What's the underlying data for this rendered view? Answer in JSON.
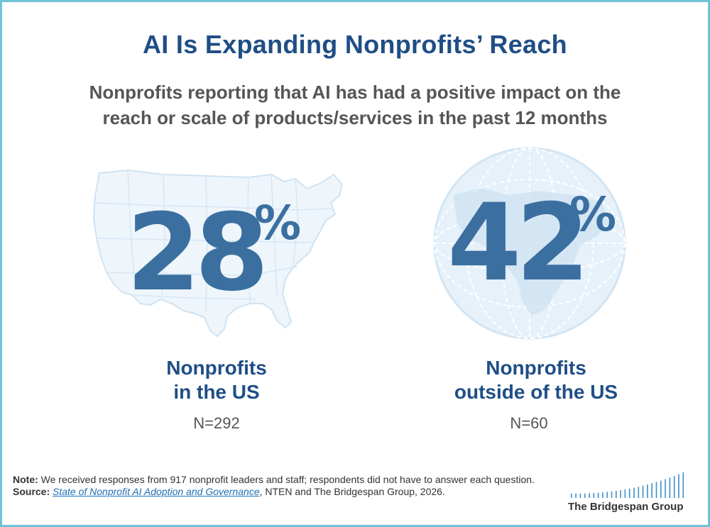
{
  "title": "AI Is Expanding Nonprofits’ Reach",
  "subtitle_line1": "Nonprofits reporting that AI has had a positive impact on the",
  "subtitle_line2": "reach or scale of products/services in the past 12 months",
  "colors": {
    "title": "#1f4e86",
    "stat": "#3a6fa0",
    "map_fill": "#e8f2fa",
    "map_line": "#cfe3f2",
    "border": "#6fc3d6"
  },
  "chart_data": {
    "type": "table",
    "title": "AI Is Expanding Nonprofits’ Reach",
    "subtitle": "Nonprofits reporting that AI has had a positive impact on the reach or scale of products/services in the past 12 months",
    "categories": [
      "Nonprofits in the US",
      "Nonprofits outside of the US"
    ],
    "values": [
      28,
      42
    ],
    "unit": "%",
    "n": [
      "N=292",
      "N=60"
    ]
  },
  "stats": {
    "us": {
      "value": "28",
      "unit": "%",
      "label_line1": "Nonprofits",
      "label_line2": "in the US",
      "n": "N=292",
      "icon": "us-map-icon"
    },
    "intl": {
      "value": "42",
      "unit": "%",
      "label_line1": "Nonprofits",
      "label_line2": "outside of the US",
      "n": "N=60",
      "icon": "globe-icon"
    }
  },
  "notes": {
    "note_label": "Note:",
    "note_text": " We received responses from 917 nonprofit leaders and staff; respondents did not have to answer each question.",
    "source_label": "Source:",
    "source_title": "State of Nonprofit AI Adoption and Governance",
    "source_rest": ", NTEN and The Bridgespan Group, 2026."
  },
  "logo": {
    "name": "The Bridgespan Group"
  }
}
